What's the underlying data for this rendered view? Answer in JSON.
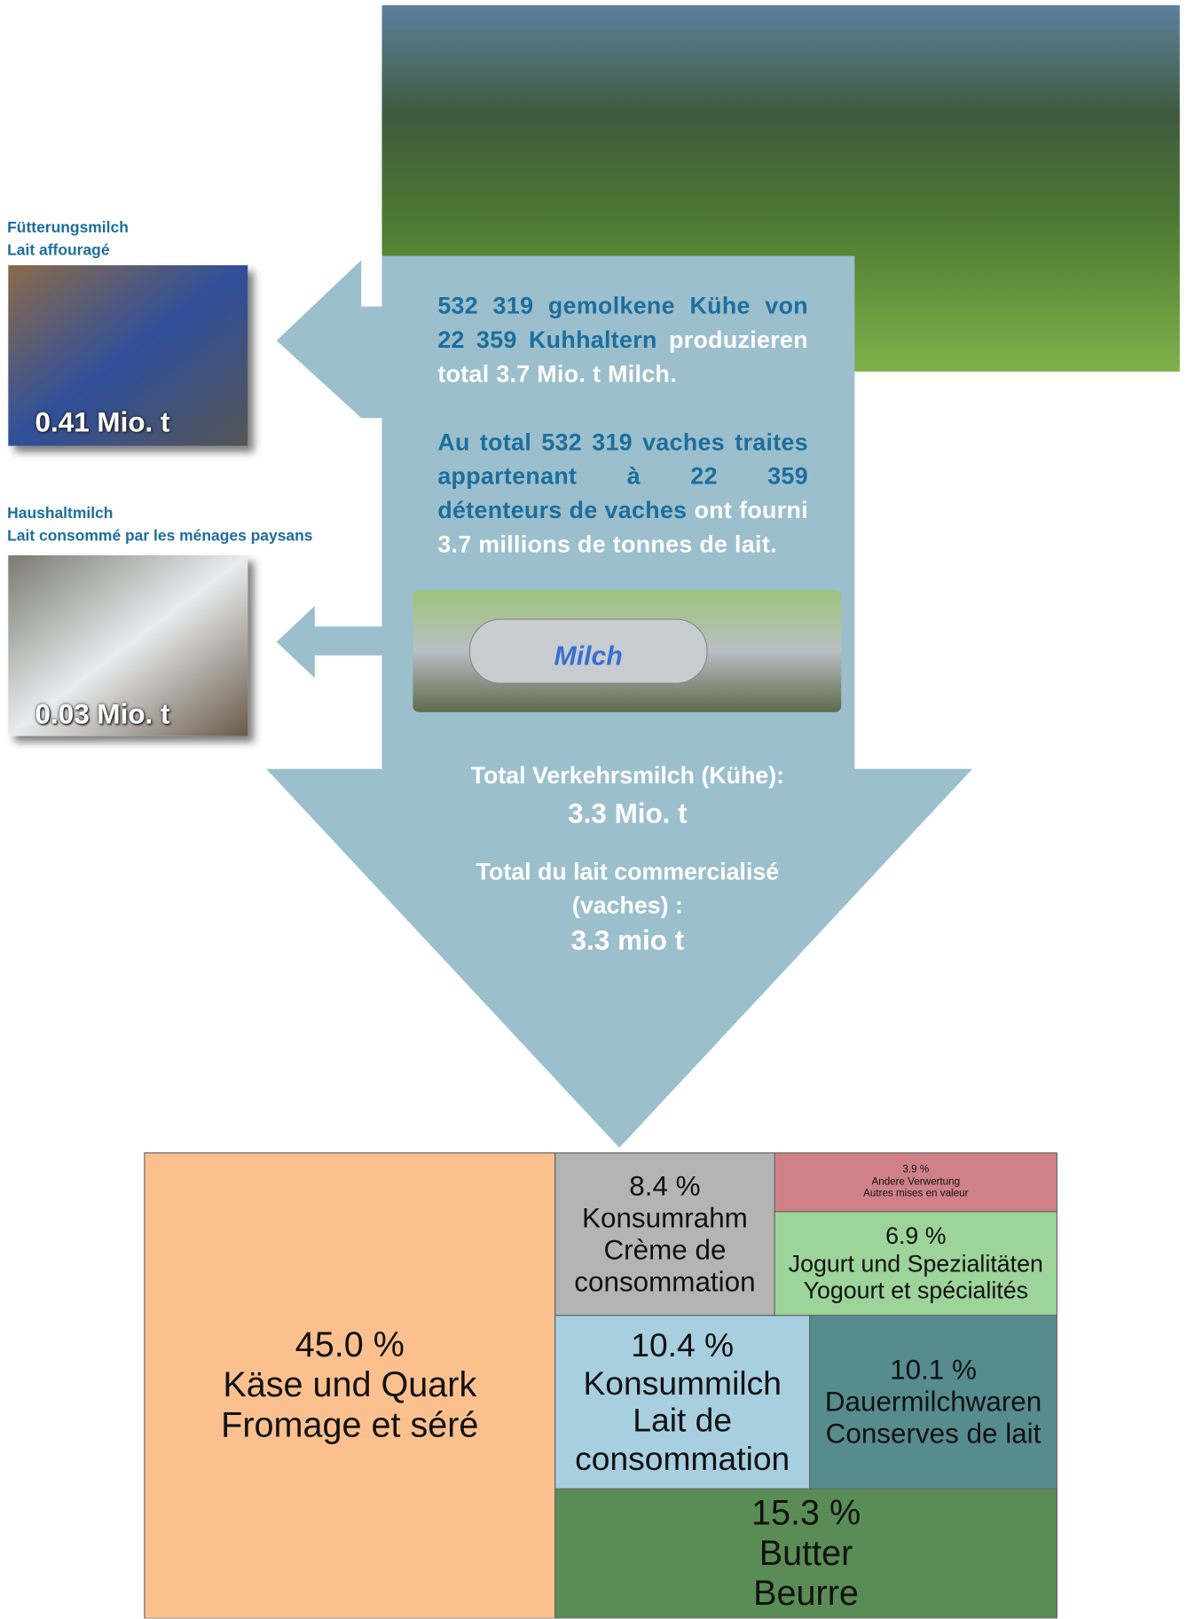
{
  "feeding_milk": {
    "title_de": "Fütterungsmilch",
    "title_fr": "Lait affouragé",
    "amount": "0.41 Mio. t"
  },
  "household_milk": {
    "title_de": "Haushaltmilch",
    "title_fr": "Lait consommé par les ménages paysans",
    "amount": "0.03 Mio. t"
  },
  "production": {
    "de_highlight": "532 319 gemolkene Kühe von 22 359 Kuhhaltern",
    "de_rest": "produzieren total 3.7 Mio. t Milch.",
    "fr_highlight": "Au total 532 319 vaches traites appartenant à 22 359 détenteurs de vaches",
    "fr_rest": "ont fourni 3.7 millions de tonnes de lait."
  },
  "truck_label": "Milch",
  "commercial": {
    "de_label": "Total Verkehrsmilch (Kühe):",
    "de_amount": "3.3 Mio. t",
    "fr_label": "Total du lait commercialisé (vaches) :",
    "fr_amount": "3.3 mio t"
  },
  "chart_data": {
    "type": "treemap",
    "categories": [
      [
        "Käse und Quark",
        "Fromage et séré"
      ],
      [
        "Konsumrahm",
        "Crème de consommation"
      ],
      [
        "Andere Verwertung",
        "Autres mises en valeur"
      ],
      [
        "Jogurt und Spezialitäten",
        "Yogourt et spécialités"
      ],
      [
        "Konsummilch",
        "Lait de consommation"
      ],
      [
        "Dauermilchwaren",
        "Conserves de lait"
      ],
      [
        "Butter",
        "Beurre"
      ]
    ],
    "values": [
      45.0,
      8.4,
      3.9,
      6.9,
      10.4,
      10.1,
      15.3
    ],
    "value_labels": [
      "45.0 %",
      "8.4 %",
      "3.9 %",
      "6.9 %",
      "10.4 %",
      "10.1 %",
      "15.3 %"
    ],
    "colors": [
      "#fcc08f",
      "#b4b4b4",
      "#cf8187",
      "#9dd49a",
      "#a7cfdf",
      "#568c8e",
      "#5a8d55"
    ]
  }
}
